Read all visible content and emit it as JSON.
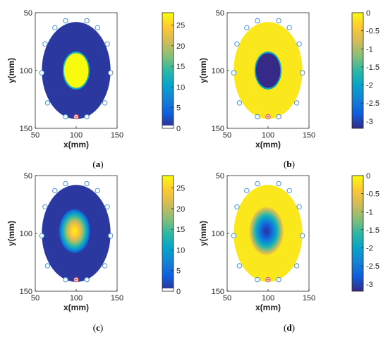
{
  "chart_data": [
    {
      "type": "heatmap",
      "caption": "(a)",
      "title": "",
      "xlabel": "x(mm)",
      "ylabel": "y(mm)",
      "xlim": [
        50,
        150
      ],
      "ylim": [
        50,
        150
      ],
      "xticks": [
        "50",
        "100",
        "150"
      ],
      "yticks": [
        "50",
        "100",
        "150"
      ],
      "domain": {
        "center": [
          100,
          100
        ],
        "radius": 42
      },
      "inclusion": {
        "center": [
          100,
          100
        ],
        "radius": 15,
        "profile": "sharp"
      },
      "background_value": 1,
      "inclusion_value": 28,
      "colorbar": {
        "min": 0,
        "max": 28,
        "ticks": [
          0,
          5,
          10,
          15,
          20,
          25
        ],
        "tick_labels": [
          "0",
          "5",
          "10",
          "15",
          "20",
          "25"
        ],
        "low_band_white": true
      },
      "electrodes": [
        [
          62,
          77
        ],
        [
          74,
          63
        ],
        [
          87,
          57
        ],
        [
          113,
          57
        ],
        [
          126,
          63
        ],
        [
          138,
          77
        ],
        [
          142,
          102
        ],
        [
          135,
          128
        ],
        [
          113,
          140
        ],
        [
          87,
          140
        ],
        [
          65,
          128
        ],
        [
          58,
          102
        ]
      ],
      "marked_electrode": [
        100,
        140
      ]
    },
    {
      "type": "heatmap",
      "caption": "(b)",
      "title": "",
      "xlabel": "x(mm)",
      "ylabel": "y(mm)",
      "xlim": [
        50,
        150
      ],
      "ylim": [
        50,
        150
      ],
      "xticks": [
        "50",
        "100",
        "150"
      ],
      "yticks": [
        "50",
        "100",
        "150"
      ],
      "domain": {
        "center": [
          100,
          100
        ],
        "radius": 42
      },
      "inclusion": {
        "center": [
          100,
          100
        ],
        "radius": 15,
        "profile": "sharp"
      },
      "background_value": -0.15,
      "inclusion_value": -3.2,
      "colorbar": {
        "min": -3.2,
        "max": 0,
        "ticks": [
          0,
          -0.5,
          -1,
          -1.5,
          -2,
          -2.5,
          -3
        ],
        "tick_labels": [
          "0",
          "-0.5",
          "-1",
          "-1.5",
          "-2",
          "-2.5",
          "-3"
        ],
        "low_band_white": false
      },
      "electrodes": [
        [
          62,
          77
        ],
        [
          74,
          63
        ],
        [
          87,
          57
        ],
        [
          113,
          57
        ],
        [
          126,
          63
        ],
        [
          138,
          77
        ],
        [
          142,
          102
        ],
        [
          135,
          128
        ],
        [
          113,
          140
        ],
        [
          87,
          140
        ],
        [
          65,
          128
        ],
        [
          58,
          102
        ]
      ],
      "marked_electrode": [
        100,
        140
      ]
    },
    {
      "type": "heatmap",
      "caption": "(c)",
      "title": "",
      "xlabel": "x(mm)",
      "ylabel": "y(mm)",
      "xlim": [
        50,
        150
      ],
      "ylim": [
        50,
        150
      ],
      "xticks": [
        "50",
        "100",
        "150"
      ],
      "yticks": [
        "50",
        "100",
        "150"
      ],
      "domain": {
        "center": [
          100,
          100
        ],
        "radius": 42
      },
      "inclusion": {
        "center": [
          98,
          98
        ],
        "radius": 20,
        "profile": "smooth"
      },
      "background_value": 1,
      "inclusion_value": 27,
      "colorbar": {
        "min": 0,
        "max": 28,
        "ticks": [
          0,
          5,
          10,
          15,
          20,
          25
        ],
        "tick_labels": [
          "0",
          "5",
          "10",
          "15",
          "20",
          "25"
        ],
        "low_band_white": true
      },
      "electrodes": [
        [
          62,
          77
        ],
        [
          74,
          63
        ],
        [
          87,
          57
        ],
        [
          113,
          57
        ],
        [
          126,
          63
        ],
        [
          138,
          77
        ],
        [
          142,
          102
        ],
        [
          135,
          128
        ],
        [
          113,
          140
        ],
        [
          87,
          140
        ],
        [
          65,
          128
        ],
        [
          58,
          102
        ]
      ],
      "marked_electrode": [
        100,
        140
      ]
    },
    {
      "type": "heatmap",
      "caption": "(d)",
      "title": "",
      "xlabel": "x(mm)",
      "ylabel": "y(mm)",
      "xlim": [
        50,
        150
      ],
      "ylim": [
        50,
        150
      ],
      "xticks": [
        "50",
        "100",
        "150"
      ],
      "yticks": [
        "50",
        "100",
        "150"
      ],
      "domain": {
        "center": [
          100,
          100
        ],
        "radius": 42
      },
      "inclusion": {
        "center": [
          98,
          98
        ],
        "radius": 22,
        "profile": "smooth"
      },
      "background_value": -0.15,
      "inclusion_value": -3.1,
      "colorbar": {
        "min": -3.2,
        "max": 0,
        "ticks": [
          0,
          -0.5,
          -1,
          -1.5,
          -2,
          -2.5,
          -3
        ],
        "tick_labels": [
          "0",
          "-0.5",
          "-1",
          "-1.5",
          "-2",
          "-2.5",
          "-3"
        ],
        "low_band_white": false
      },
      "electrodes": [
        [
          62,
          77
        ],
        [
          74,
          63
        ],
        [
          87,
          57
        ],
        [
          113,
          57
        ],
        [
          126,
          63
        ],
        [
          138,
          77
        ],
        [
          142,
          102
        ],
        [
          135,
          128
        ],
        [
          113,
          140
        ],
        [
          87,
          140
        ],
        [
          65,
          128
        ],
        [
          58,
          102
        ]
      ],
      "marked_electrode": [
        100,
        140
      ]
    }
  ],
  "colors": {
    "colormap": "parula",
    "electrode_ring": "#4a90d9",
    "marker_electrode": "#d9534f",
    "axis": "#262626"
  }
}
